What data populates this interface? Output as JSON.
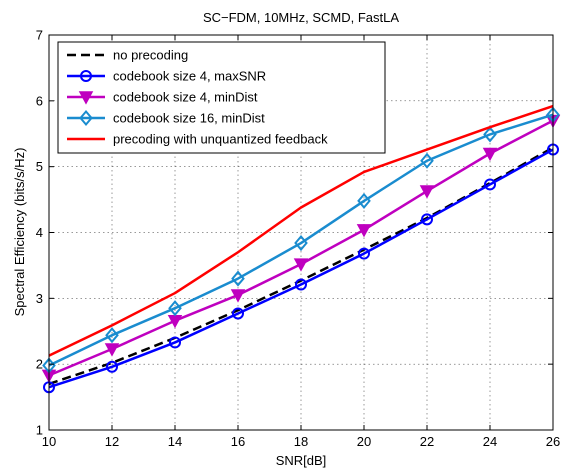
{
  "chart_data": {
    "type": "line",
    "title": "SC−FDM, 10MHz, SCMD, FastLA",
    "xlabel": "SNR[dB]",
    "ylabel": "Spectral Efficiency (bits/s/Hz)",
    "xlim": [
      10,
      26
    ],
    "ylim": [
      1,
      7
    ],
    "xticks": [
      10,
      12,
      14,
      16,
      18,
      20,
      22,
      24,
      26
    ],
    "yticks": [
      1,
      2,
      3,
      4,
      5,
      6,
      7
    ],
    "grid": true,
    "legend_position": "top-left",
    "x": [
      10,
      12,
      14,
      16,
      18,
      20,
      22,
      24,
      26
    ],
    "series": [
      {
        "name": "no precoding",
        "color": "#000000",
        "dash": "dashed",
        "marker": "none",
        "values": [
          1.7,
          2.02,
          2.4,
          2.82,
          3.27,
          3.74,
          4.22,
          4.75,
          5.29
        ]
      },
      {
        "name": "codebook size 4, maxSNR",
        "color": "#0000ff",
        "dash": "solid",
        "marker": "circle",
        "values": [
          1.65,
          1.96,
          2.33,
          2.77,
          3.21,
          3.68,
          4.2,
          4.73,
          5.26
        ]
      },
      {
        "name": "codebook size 4, minDist",
        "color": "#bf00bf",
        "dash": "solid",
        "marker": "triangle-down",
        "values": [
          1.83,
          2.23,
          2.66,
          3.05,
          3.52,
          4.04,
          4.63,
          5.2,
          5.7
        ]
      },
      {
        "name": "codebook size 16, minDist",
        "color": "#1a8ccf",
        "dash": "solid",
        "marker": "diamond",
        "values": [
          1.98,
          2.44,
          2.85,
          3.3,
          3.84,
          4.48,
          5.09,
          5.49,
          5.79
        ]
      },
      {
        "name": "precoding with unquantized feedback",
        "color": "#ff0000",
        "dash": "solid",
        "marker": "none",
        "values": [
          2.13,
          2.59,
          3.08,
          3.7,
          4.38,
          4.92,
          5.26,
          5.6,
          5.92
        ]
      }
    ]
  }
}
